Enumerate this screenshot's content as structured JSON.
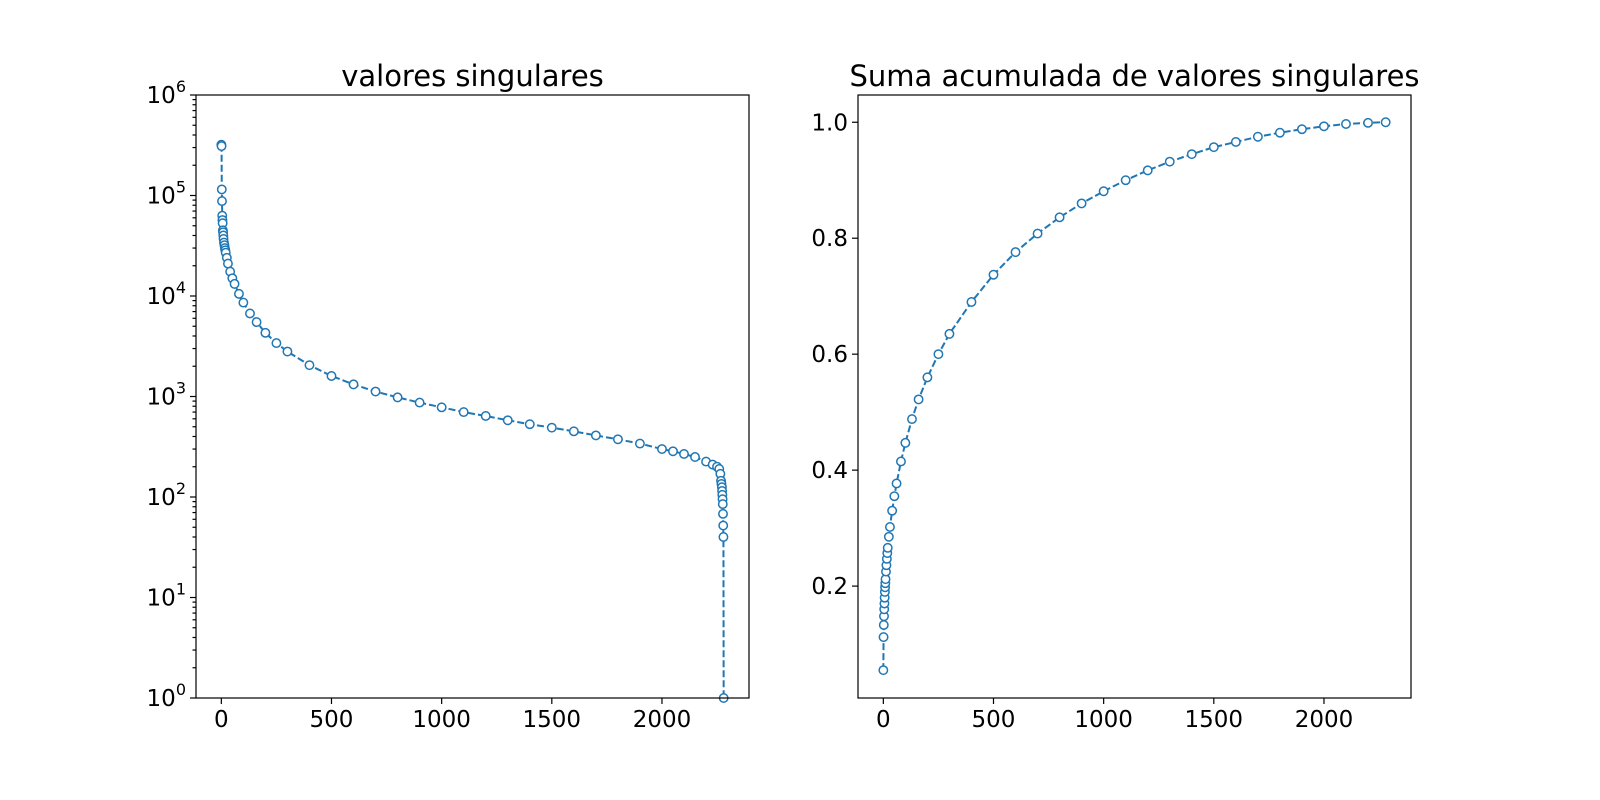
{
  "chart_data": [
    {
      "type": "line",
      "title": "valores singulares",
      "xlabel": "",
      "ylabel": "",
      "yscale": "log",
      "xlim": [
        -115,
        2395
      ],
      "ylim": [
        1,
        1000000
      ],
      "xticks": [
        0,
        500,
        1000,
        1500,
        2000
      ],
      "yticks": [
        1,
        10,
        100,
        1000,
        10000,
        100000,
        1000000
      ],
      "ytick_labels": [
        {
          "base": "10",
          "exp": "0"
        },
        {
          "base": "10",
          "exp": "1"
        },
        {
          "base": "10",
          "exp": "2"
        },
        {
          "base": "10",
          "exp": "3"
        },
        {
          "base": "10",
          "exp": "4"
        },
        {
          "base": "10",
          "exp": "5"
        },
        {
          "base": "10",
          "exp": "6"
        }
      ],
      "marker": "o",
      "linestyle": "dashed",
      "color": "#1f77b4",
      "grid": false,
      "series": [
        {
          "x": [
            0,
            1,
            2,
            3,
            4,
            5,
            6,
            7,
            8,
            9,
            10,
            12,
            14,
            16,
            18,
            20,
            25,
            30,
            40,
            50,
            60,
            80,
            100,
            130,
            160,
            200,
            250,
            300,
            400,
            500,
            600,
            700,
            800,
            900,
            1000,
            1100,
            1200,
            1300,
            1400,
            1500,
            1600,
            1700,
            1800,
            1900,
            2000,
            2050,
            2100,
            2150,
            2200,
            2230,
            2250,
            2260,
            2265,
            2268,
            2270,
            2272,
            2273,
            2274,
            2275,
            2276,
            2277,
            2278,
            2279,
            2280
          ],
          "y": [
            320000,
            310000,
            115000,
            88000,
            63000,
            57000,
            53000,
            45000,
            43000,
            40000,
            37000,
            34000,
            32000,
            30000,
            28500,
            27000,
            24000,
            21000,
            17500,
            15000,
            13200,
            10500,
            8600,
            6700,
            5500,
            4300,
            3400,
            2800,
            2050,
            1600,
            1320,
            1120,
            980,
            870,
            780,
            700,
            640,
            580,
            530,
            490,
            450,
            410,
            375,
            340,
            300,
            285,
            268,
            250,
            225,
            210,
            200,
            190,
            170,
            145,
            135,
            125,
            115,
            105,
            95,
            85,
            68,
            52,
            40,
            1
          ]
        }
      ]
    },
    {
      "type": "line",
      "title": "Suma acumulada de valores singulares",
      "xlabel": "",
      "ylabel": "",
      "yscale": "linear",
      "xlim": [
        -115,
        2395
      ],
      "ylim": [
        0.007,
        1.047
      ],
      "xticks": [
        0,
        500,
        1000,
        1500,
        2000
      ],
      "yticks": [
        0.2,
        0.4,
        0.6,
        0.8,
        1.0
      ],
      "ytick_labels": [
        "0.2",
        "0.4",
        "0.6",
        "0.8",
        "1.0"
      ],
      "marker": "o",
      "linestyle": "dashed",
      "color": "#1f77b4",
      "grid": false,
      "series": [
        {
          "x": [
            0,
            1,
            2,
            3,
            4,
            5,
            6,
            7,
            8,
            9,
            10,
            12,
            14,
            16,
            18,
            20,
            25,
            30,
            40,
            50,
            60,
            80,
            100,
            130,
            160,
            200,
            250,
            300,
            400,
            500,
            600,
            700,
            800,
            900,
            1000,
            1100,
            1200,
            1300,
            1400,
            1500,
            1600,
            1700,
            1800,
            1900,
            2000,
            2100,
            2200,
            2280
          ],
          "y": [
            0.055,
            0.112,
            0.133,
            0.148,
            0.16,
            0.17,
            0.18,
            0.19,
            0.198,
            0.205,
            0.212,
            0.225,
            0.236,
            0.247,
            0.257,
            0.266,
            0.285,
            0.302,
            0.33,
            0.355,
            0.377,
            0.415,
            0.447,
            0.488,
            0.522,
            0.56,
            0.6,
            0.635,
            0.69,
            0.737,
            0.776,
            0.808,
            0.836,
            0.86,
            0.881,
            0.9,
            0.917,
            0.932,
            0.945,
            0.957,
            0.966,
            0.975,
            0.982,
            0.988,
            0.993,
            0.997,
            0.999,
            1.0
          ]
        }
      ]
    }
  ]
}
